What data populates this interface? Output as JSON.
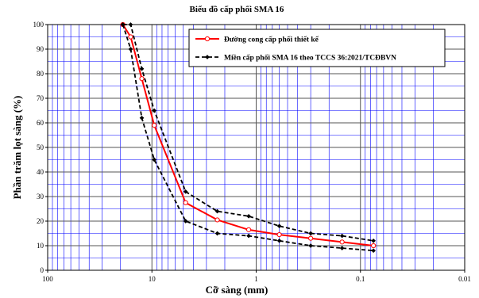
{
  "chart_data": {
    "type": "line",
    "title": "Biểu đồ cấp phối SMA 16",
    "xlabel": "Cỡ sàng (mm)",
    "ylabel": "Phần trăm lọt sàng (%)",
    "x_scale": "log",
    "x_reversed": true,
    "xlim": [
      100,
      0.01
    ],
    "ylim": [
      0,
      100
    ],
    "x_ticks": [
      "100",
      "10",
      "1",
      "0.1",
      "0.01"
    ],
    "y_ticks": [
      "0",
      "10",
      "20",
      "30",
      "40",
      "50",
      "60",
      "70",
      "80",
      "90",
      "100"
    ],
    "grid": true,
    "legend_position": "top-right",
    "colors": {
      "design": "#ff0000",
      "limits": "#000000",
      "grid": "#0000ff",
      "major_grid": "#555555"
    },
    "series": [
      {
        "name": "Đường cong cấp phối thiết kế",
        "x": [
          19,
          16,
          12.5,
          9.5,
          4.75,
          2.36,
          1.18,
          0.6,
          0.3,
          0.15,
          0.075
        ],
        "y": [
          100,
          95,
          78,
          59,
          27.5,
          20.5,
          16.5,
          14.5,
          13,
          11.5,
          10
        ]
      },
      {
        "name": "Miền cấp phối SMA 16 theo TCCS 36:2021/TCĐBVN",
        "x": [
          19,
          16,
          12.5,
          9.5,
          4.75,
          2.36,
          1.18,
          0.6,
          0.3,
          0.15,
          0.075
        ],
        "y": [
          100,
          100,
          82,
          65,
          32,
          24,
          22,
          18,
          15,
          14,
          12
        ]
      },
      {
        "name": "",
        "x": [
          19,
          16,
          12.5,
          9.5,
          4.75,
          2.36,
          1.18,
          0.6,
          0.3,
          0.15,
          0.075
        ],
        "y": [
          100,
          90,
          62,
          45,
          20,
          15,
          14,
          12,
          10,
          9,
          8
        ]
      }
    ]
  }
}
